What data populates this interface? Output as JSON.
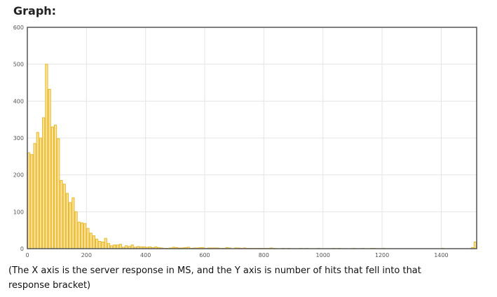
{
  "heading": "Graph:",
  "caption": "(The X axis is the server response in MS, and the Y axis is number of hits that fell into that response bracket)",
  "colors": {
    "bar_fill": "#fbe29b",
    "bar_stroke": "#e7b92a",
    "grid": "#e4e4e4",
    "frame": "#555555"
  },
  "chart_data": {
    "type": "bar",
    "title": "",
    "xlabel": "",
    "ylabel": "",
    "xlim": [
      0,
      1520
    ],
    "ylim": [
      0,
      600
    ],
    "bin_width": 10,
    "grid": true,
    "x_ticks": [
      0,
      200,
      400,
      600,
      800,
      1000,
      1200,
      1400
    ],
    "y_ticks": [
      0,
      100,
      200,
      300,
      400,
      500,
      600
    ],
    "x": [
      0,
      10,
      20,
      30,
      40,
      50,
      60,
      70,
      80,
      90,
      100,
      110,
      120,
      130,
      140,
      150,
      160,
      170,
      180,
      190,
      200,
      210,
      220,
      230,
      240,
      250,
      260,
      270,
      280,
      290,
      300,
      310,
      320,
      330,
      340,
      350,
      360,
      370,
      380,
      390,
      400,
      410,
      420,
      430,
      440,
      450,
      460,
      470,
      480,
      490,
      500,
      510,
      520,
      530,
      540,
      550,
      560,
      570,
      580,
      590,
      600,
      610,
      620,
      630,
      640,
      650,
      660,
      670,
      680,
      690,
      700,
      710,
      720,
      730,
      740,
      750,
      760,
      770,
      780,
      790,
      800,
      810,
      820,
      830,
      840,
      850,
      860,
      870,
      880,
      890,
      900,
      910,
      920,
      930,
      940,
      950,
      960,
      970,
      980,
      990,
      1000,
      1010,
      1020,
      1030,
      1040,
      1050,
      1060,
      1070,
      1080,
      1090,
      1100,
      1110,
      1120,
      1130,
      1140,
      1150,
      1160,
      1170,
      1180,
      1190,
      1200,
      1210,
      1220,
      1230,
      1240,
      1250,
      1260,
      1270,
      1280,
      1290,
      1300,
      1310,
      1320,
      1330,
      1340,
      1350,
      1360,
      1370,
      1380,
      1390,
      1400,
      1410,
      1420,
      1430,
      1440,
      1450,
      1460,
      1470,
      1480,
      1490,
      1500,
      1510
    ],
    "values": [
      260,
      255,
      285,
      315,
      300,
      355,
      500,
      432,
      330,
      335,
      298,
      185,
      175,
      150,
      125,
      138,
      100,
      72,
      70,
      68,
      55,
      42,
      35,
      26,
      20,
      18,
      28,
      14,
      8,
      10,
      10,
      12,
      4,
      8,
      6,
      10,
      4,
      6,
      5,
      5,
      4,
      5,
      3,
      5,
      3,
      2,
      1,
      1,
      2,
      4,
      3,
      2,
      2,
      3,
      4,
      1,
      2,
      2,
      3,
      3,
      1,
      2,
      2,
      2,
      2,
      1,
      1,
      3,
      2,
      0,
      2,
      2,
      1,
      2,
      1,
      1,
      1,
      1,
      1,
      1,
      1,
      1,
      2,
      1,
      0,
      0,
      1,
      0,
      1,
      0,
      0,
      0,
      1,
      0,
      1,
      0,
      0,
      0,
      1,
      0,
      0,
      0,
      0,
      1,
      0,
      1,
      0,
      0,
      0,
      0,
      1,
      0,
      0,
      1,
      0,
      0,
      1,
      1,
      0,
      0,
      1,
      0,
      0,
      0,
      0,
      0,
      0,
      0,
      0,
      0,
      0,
      0,
      0,
      0,
      0,
      0,
      0,
      0,
      0,
      0,
      1,
      0,
      0,
      0,
      0,
      0,
      0,
      0,
      0,
      0,
      3,
      18
    ]
  }
}
